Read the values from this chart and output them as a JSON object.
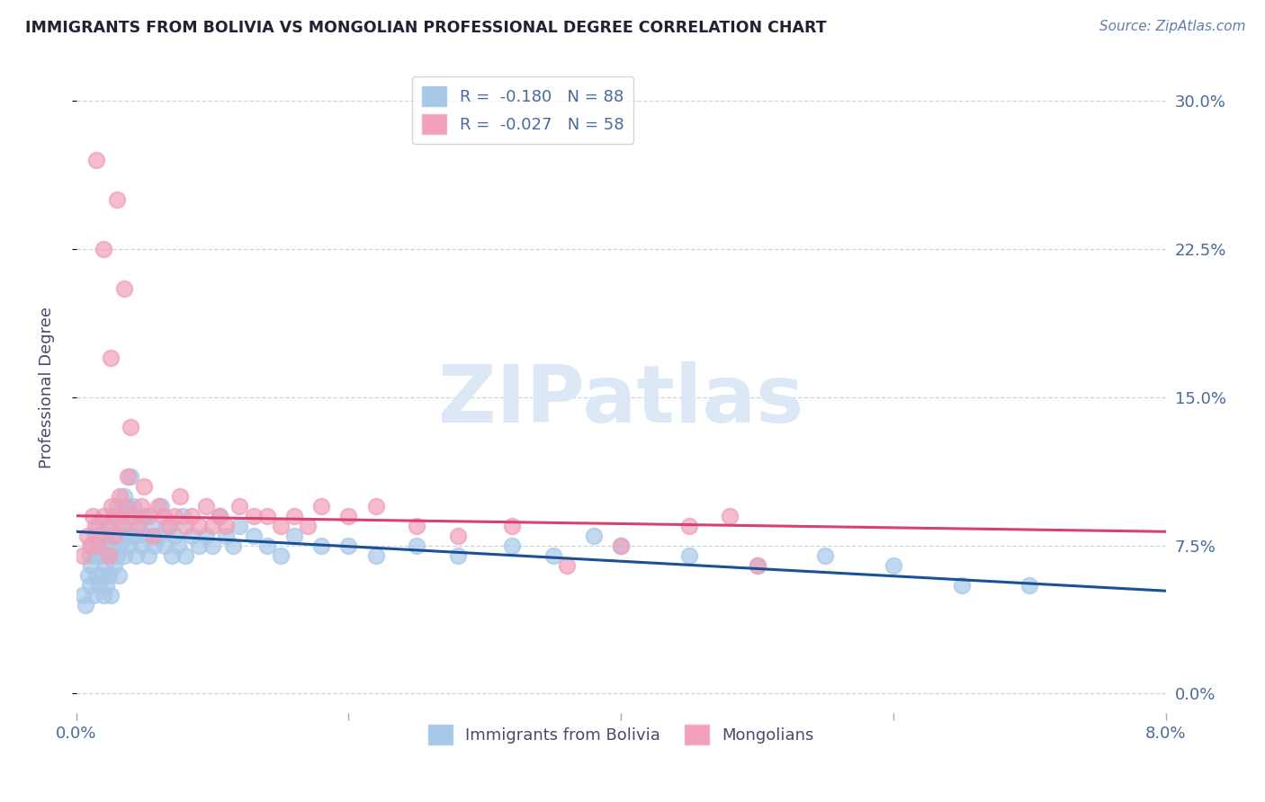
{
  "title": "IMMIGRANTS FROM BOLIVIA VS MONGOLIAN PROFESSIONAL DEGREE CORRELATION CHART",
  "source": "Source: ZipAtlas.com",
  "ylabel": "Professional Degree",
  "ytick_vals": [
    0.0,
    7.5,
    15.0,
    22.5,
    30.0
  ],
  "xlim": [
    0.0,
    8.0
  ],
  "ylim": [
    -1.0,
    32.0
  ],
  "legend_entry1": "R =  -0.180   N = 88",
  "legend_entry2": "R =  -0.027   N = 58",
  "legend_label1": "Immigrants from Bolivia",
  "legend_label2": "Mongolians",
  "color_blue": "#a8c8e8",
  "color_pink": "#f0a0b8",
  "line_color_blue": "#1a5096",
  "line_color_pink": "#d84070",
  "background_color": "#ffffff",
  "grid_color": "#c8d4e8",
  "title_color": "#222233",
  "axis_color": "#4a6a9a",
  "source_color": "#6080aa",
  "watermark": "ZIPatlas",
  "watermark_color": "#dce8f5",
  "bolivia_x": [
    0.05,
    0.07,
    0.09,
    0.1,
    0.1,
    0.11,
    0.12,
    0.13,
    0.14,
    0.15,
    0.15,
    0.16,
    0.17,
    0.18,
    0.19,
    0.2,
    0.2,
    0.21,
    0.22,
    0.22,
    0.23,
    0.24,
    0.25,
    0.25,
    0.26,
    0.27,
    0.28,
    0.29,
    0.3,
    0.3,
    0.31,
    0.32,
    0.33,
    0.34,
    0.35,
    0.35,
    0.36,
    0.37,
    0.38,
    0.4,
    0.4,
    0.42,
    0.43,
    0.44,
    0.45,
    0.46,
    0.48,
    0.5,
    0.52,
    0.53,
    0.55,
    0.57,
    0.6,
    0.62,
    0.65,
    0.67,
    0.7,
    0.72,
    0.75,
    0.78,
    0.8,
    0.85,
    0.9,
    0.95,
    1.0,
    1.05,
    1.1,
    1.15,
    1.2,
    1.3,
    1.4,
    1.5,
    1.6,
    1.8,
    2.0,
    2.2,
    2.5,
    2.8,
    3.2,
    3.5,
    3.8,
    4.0,
    4.5,
    5.0,
    5.5,
    6.0,
    6.5,
    7.0
  ],
  "bolivia_y": [
    5.0,
    4.5,
    6.0,
    5.5,
    7.0,
    6.5,
    7.5,
    5.0,
    8.0,
    6.0,
    7.0,
    8.5,
    5.5,
    7.0,
    6.0,
    5.0,
    7.5,
    6.5,
    8.0,
    5.5,
    7.0,
    6.0,
    8.5,
    5.0,
    7.5,
    9.0,
    6.5,
    8.0,
    7.0,
    9.5,
    6.0,
    7.5,
    9.0,
    8.5,
    10.0,
    7.0,
    8.0,
    9.5,
    7.5,
    11.0,
    8.0,
    9.5,
    8.0,
    7.0,
    9.0,
    8.5,
    7.5,
    9.0,
    8.0,
    7.0,
    8.5,
    7.5,
    8.0,
    9.5,
    7.5,
    8.5,
    7.0,
    8.0,
    7.5,
    9.0,
    7.0,
    8.0,
    7.5,
    8.0,
    7.5,
    9.0,
    8.0,
    7.5,
    8.5,
    8.0,
    7.5,
    7.0,
    8.0,
    7.5,
    7.5,
    7.0,
    7.5,
    7.0,
    7.5,
    7.0,
    8.0,
    7.5,
    7.0,
    6.5,
    7.0,
    6.5,
    5.5,
    5.5
  ],
  "mongolia_x": [
    0.05,
    0.08,
    0.1,
    0.12,
    0.14,
    0.16,
    0.18,
    0.2,
    0.22,
    0.24,
    0.26,
    0.28,
    0.3,
    0.32,
    0.34,
    0.36,
    0.38,
    0.4,
    0.42,
    0.45,
    0.48,
    0.5,
    0.53,
    0.56,
    0.6,
    0.64,
    0.68,
    0.72,
    0.76,
    0.8,
    0.85,
    0.9,
    0.95,
    1.0,
    1.05,
    1.1,
    1.2,
    1.3,
    1.4,
    1.5,
    1.6,
    1.7,
    1.8,
    2.0,
    2.2,
    2.5,
    2.8,
    3.2,
    3.6,
    4.0,
    4.5,
    5.0,
    4.8,
    0.15,
    0.2,
    0.25,
    0.3,
    0.35
  ],
  "mongolia_y": [
    7.0,
    8.0,
    7.5,
    9.0,
    8.5,
    7.5,
    8.0,
    9.0,
    8.5,
    7.0,
    9.5,
    8.0,
    9.0,
    10.0,
    8.5,
    9.5,
    11.0,
    13.5,
    9.0,
    8.5,
    9.5,
    10.5,
    9.0,
    8.0,
    9.5,
    9.0,
    8.5,
    9.0,
    10.0,
    8.5,
    9.0,
    8.5,
    9.5,
    8.5,
    9.0,
    8.5,
    9.5,
    9.0,
    9.0,
    8.5,
    9.0,
    8.5,
    9.5,
    9.0,
    9.5,
    8.5,
    8.0,
    8.5,
    6.5,
    7.5,
    8.5,
    6.5,
    9.0,
    27.0,
    22.5,
    17.0,
    25.0,
    20.5
  ],
  "bolivia_trend_x": [
    0.0,
    8.0
  ],
  "bolivia_trend_y": [
    8.2,
    5.2
  ],
  "mongolia_trend_x": [
    0.0,
    8.0
  ],
  "mongolia_trend_y": [
    9.0,
    8.2
  ]
}
